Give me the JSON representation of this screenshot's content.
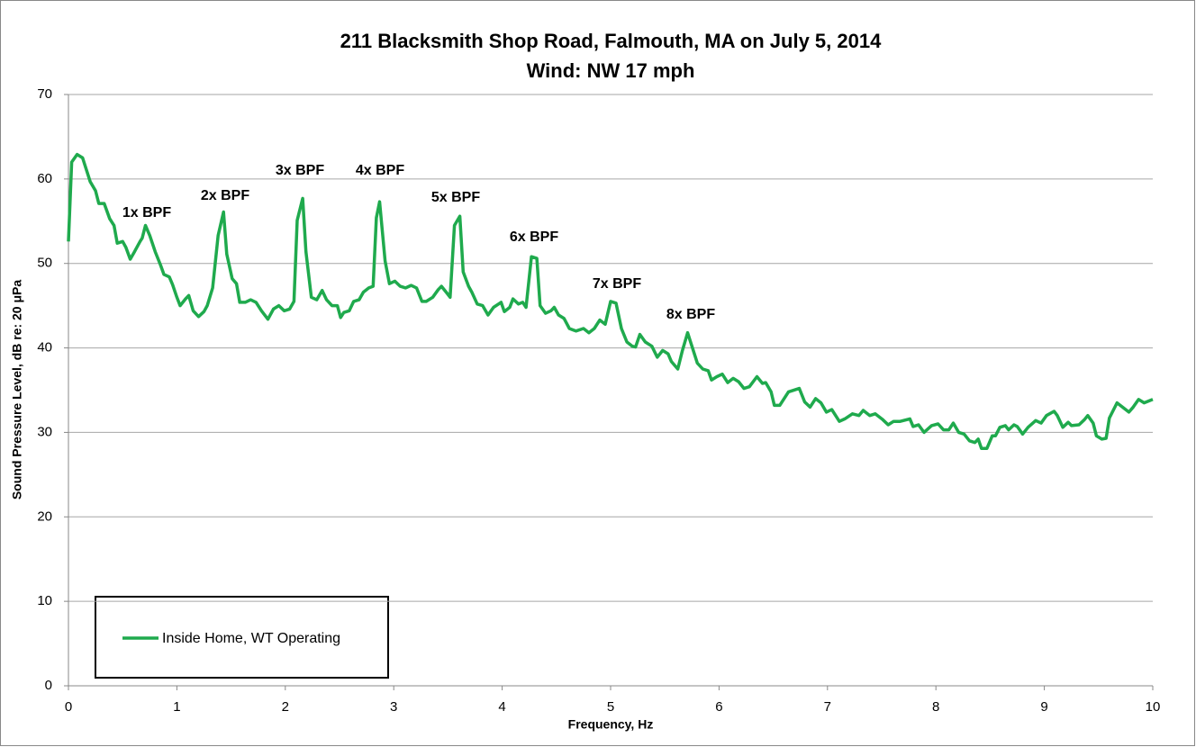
{
  "chart_data": {
    "type": "line",
    "title": "211 Blacksmith Shop Road, Falmouth, MA on July 5, 2014",
    "subtitle": "Wind: NW 17 mph",
    "x_label": "Frequency, Hz",
    "y_label": "Sound Pressure Level, dB re: 20 μPa",
    "annotations": [
      "1x BPF",
      "2x BPF",
      "3x BPF",
      "4x BPF",
      "5x BPF",
      "6x BPF",
      "7x BPF",
      "8x BPF"
    ],
    "xlim": [
      0,
      10
    ],
    "xticks": [
      0,
      1,
      2,
      3,
      4,
      5,
      6,
      7,
      8,
      9,
      10
    ],
    "ylim": [
      0,
      70
    ],
    "yticks": [
      0,
      10,
      20,
      30,
      40,
      50,
      60,
      70
    ],
    "grid": true,
    "legend": "lower left",
    "x": [
      0,
      0.03,
      0.08,
      0.13,
      0.2,
      0.25,
      0.28,
      0.33,
      0.38,
      0.42,
      0.45,
      0.5,
      0.53,
      0.57,
      0.61,
      0.66,
      0.68,
      0.71,
      0.75,
      0.8,
      0.85,
      0.88,
      0.93,
      0.96,
      1.0,
      1.03,
      1.08,
      1.11,
      1.15,
      1.2,
      1.25,
      1.28,
      1.33,
      1.38,
      1.43,
      1.46,
      1.51,
      1.55,
      1.58,
      1.63,
      1.68,
      1.73,
      1.78,
      1.84,
      1.89,
      1.94,
      1.99,
      2.04,
      2.08,
      2.11,
      2.16,
      2.19,
      2.24,
      2.29,
      2.34,
      2.38,
      2.43,
      2.48,
      2.51,
      2.54,
      2.59,
      2.63,
      2.68,
      2.72,
      2.77,
      2.81,
      2.84,
      2.87,
      2.92,
      2.96,
      3.01,
      3.06,
      3.11,
      3.16,
      3.21,
      3.26,
      3.3,
      3.36,
      3.41,
      3.44,
      3.49,
      3.52,
      3.56,
      3.61,
      3.64,
      3.69,
      3.72,
      3.77,
      3.82,
      3.87,
      3.92,
      3.99,
      4.02,
      4.07,
      4.1,
      4.15,
      4.19,
      4.22,
      4.27,
      4.32,
      4.35,
      4.4,
      4.45,
      4.48,
      4.52,
      4.57,
      4.62,
      4.68,
      4.75,
      4.8,
      4.85,
      4.9,
      4.95,
      5.0,
      5.05,
      5.1,
      5.15,
      5.2,
      5.23,
      5.27,
      5.32,
      5.38,
      5.43,
      5.48,
      5.53,
      5.56,
      5.62,
      5.66,
      5.71,
      5.75,
      5.8,
      5.85,
      5.9,
      5.93,
      5.98,
      6.03,
      6.08,
      6.13,
      6.18,
      6.23,
      6.28,
      6.35,
      6.4,
      6.43,
      6.48,
      6.51,
      6.56,
      6.64,
      6.74,
      6.79,
      6.84,
      6.89,
      6.94,
      6.99,
      7.04,
      7.11,
      7.16,
      7.23,
      7.29,
      7.33,
      7.39,
      7.44,
      7.51,
      7.56,
      7.61,
      7.67,
      7.76,
      7.79,
      7.84,
      7.89,
      7.96,
      8.02,
      8.07,
      8.12,
      8.16,
      8.21,
      8.26,
      8.31,
      8.36,
      8.39,
      8.42,
      8.47,
      8.52,
      8.55,
      8.59,
      8.64,
      8.67,
      8.72,
      8.75,
      8.8,
      8.85,
      8.92,
      8.97,
      9.02,
      9.09,
      9.12,
      9.17,
      9.22,
      9.25,
      9.32,
      9.37,
      9.4,
      9.45,
      9.48,
      9.53,
      9.57,
      9.6,
      9.67,
      9.72,
      9.78,
      9.82,
      9.87,
      9.92,
      10.0
    ],
    "series": [
      {
        "name": "Inside Home, WT Operating",
        "color": "#1faa4d",
        "values": [
          52.6,
          62,
          62.9,
          62.5,
          59.7,
          58.6,
          57.1,
          57.1,
          55.3,
          54.5,
          52.4,
          52.6,
          51.9,
          50.5,
          51.4,
          52.6,
          53,
          54.5,
          53.3,
          51.4,
          49.8,
          48.7,
          48.4,
          47.5,
          46,
          45,
          45.8,
          46.2,
          44.4,
          43.7,
          44.3,
          45,
          47.1,
          53.3,
          56.1,
          51.1,
          48.2,
          47.6,
          45.4,
          45.4,
          45.7,
          45.4,
          44.4,
          43.4,
          44.6,
          45,
          44.4,
          44.6,
          45.5,
          55.1,
          57.7,
          51.4,
          46,
          45.7,
          46.8,
          45.7,
          45,
          45,
          43.6,
          44.2,
          44.4,
          45.5,
          45.7,
          46.6,
          47.1,
          47.3,
          55.4,
          57.3,
          50.3,
          47.6,
          47.9,
          47.3,
          47.1,
          47.4,
          47.1,
          45.5,
          45.5,
          46,
          46.9,
          47.3,
          46.5,
          46,
          54.5,
          55.6,
          49,
          47.3,
          46.6,
          45.2,
          45,
          43.9,
          44.8,
          45.4,
          44.3,
          44.8,
          45.8,
          45.2,
          45.4,
          44.8,
          50.8,
          50.6,
          45,
          44.1,
          44.4,
          44.8,
          43.9,
          43.5,
          42.3,
          42,
          42.3,
          41.8,
          42.3,
          43.3,
          42.8,
          45.5,
          45.3,
          42.3,
          40.7,
          40.2,
          40.1,
          41.6,
          40.7,
          40.2,
          38.9,
          39.7,
          39.3,
          38.4,
          37.5,
          39.6,
          41.8,
          40.2,
          38.2,
          37.5,
          37.3,
          36.2,
          36.6,
          36.9,
          35.9,
          36.4,
          36,
          35.2,
          35.4,
          36.6,
          35.8,
          35.9,
          34.8,
          33.2,
          33.2,
          34.8,
          35.2,
          33.6,
          33,
          34,
          33.5,
          32.4,
          32.7,
          31.3,
          31.6,
          32.2,
          32,
          32.6,
          32,
          32.2,
          31.5,
          30.9,
          31.3,
          31.3,
          31.6,
          30.7,
          30.9,
          30,
          30.8,
          31,
          30.3,
          30.3,
          31.1,
          30,
          29.8,
          29,
          28.8,
          29.2,
          28.1,
          28.1,
          29.6,
          29.6,
          30.6,
          30.8,
          30.3,
          30.9,
          30.7,
          29.8,
          30.6,
          31.4,
          31.1,
          32,
          32.5,
          32,
          30.6,
          31.2,
          30.8,
          30.9,
          31.5,
          32,
          31.1,
          29.6,
          29.2,
          29.3,
          31.7,
          33.5,
          33,
          32.4,
          33,
          33.9,
          33.5,
          33.9
        ]
      }
    ]
  }
}
